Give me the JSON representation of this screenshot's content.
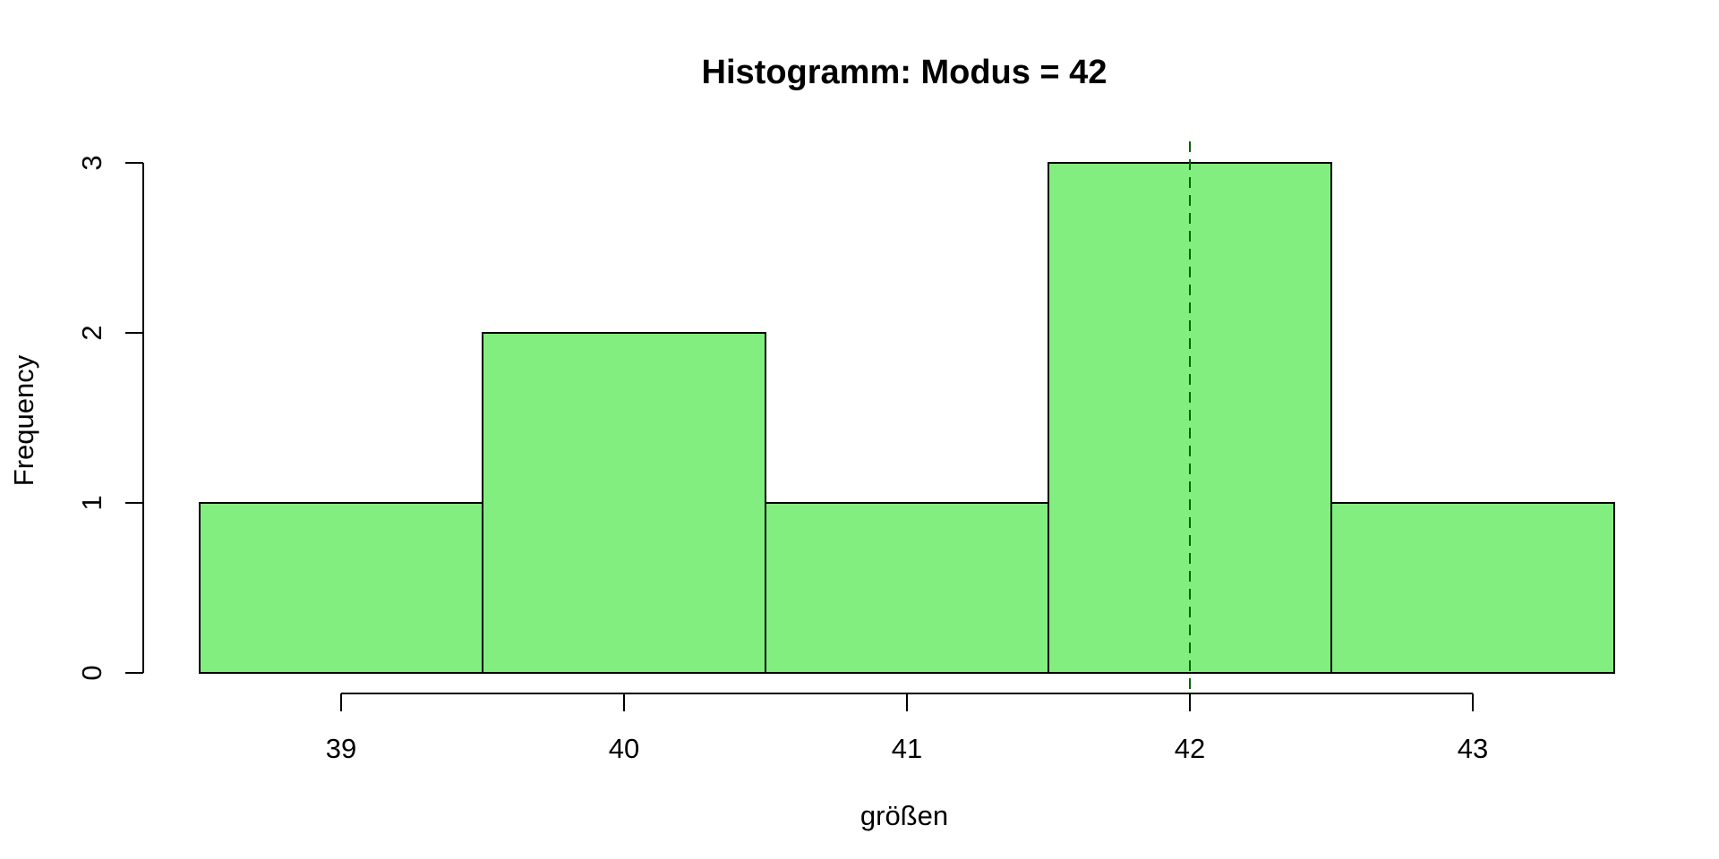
{
  "chart_data": {
    "type": "bar",
    "title": "Histogramm: Modus = 42",
    "xlabel": "größen",
    "ylabel": "Frequency",
    "bins": [
      {
        "start": 38.5,
        "end": 39.5,
        "count": 1
      },
      {
        "start": 39.5,
        "end": 40.5,
        "count": 2
      },
      {
        "start": 40.5,
        "end": 41.5,
        "count": 1
      },
      {
        "start": 41.5,
        "end": 42.5,
        "count": 3
      },
      {
        "start": 42.5,
        "end": 43.5,
        "count": 1
      }
    ],
    "x_ticks": [
      39,
      40,
      41,
      42,
      43
    ],
    "x_tick_labels": [
      "39",
      "40",
      "41",
      "42",
      "43"
    ],
    "y_ticks": [
      0,
      1,
      2,
      3
    ],
    "y_tick_labels": [
      "0",
      "1",
      "2",
      "3"
    ],
    "xlim": [
      38.5,
      43.5
    ],
    "ylim": [
      0,
      3
    ],
    "mode_line": {
      "x": 42,
      "style": "dashed"
    },
    "grid": false,
    "colors": {
      "bar_fill": "#83ee80",
      "bar_border": "#000000",
      "mode_line": "#006400"
    }
  }
}
